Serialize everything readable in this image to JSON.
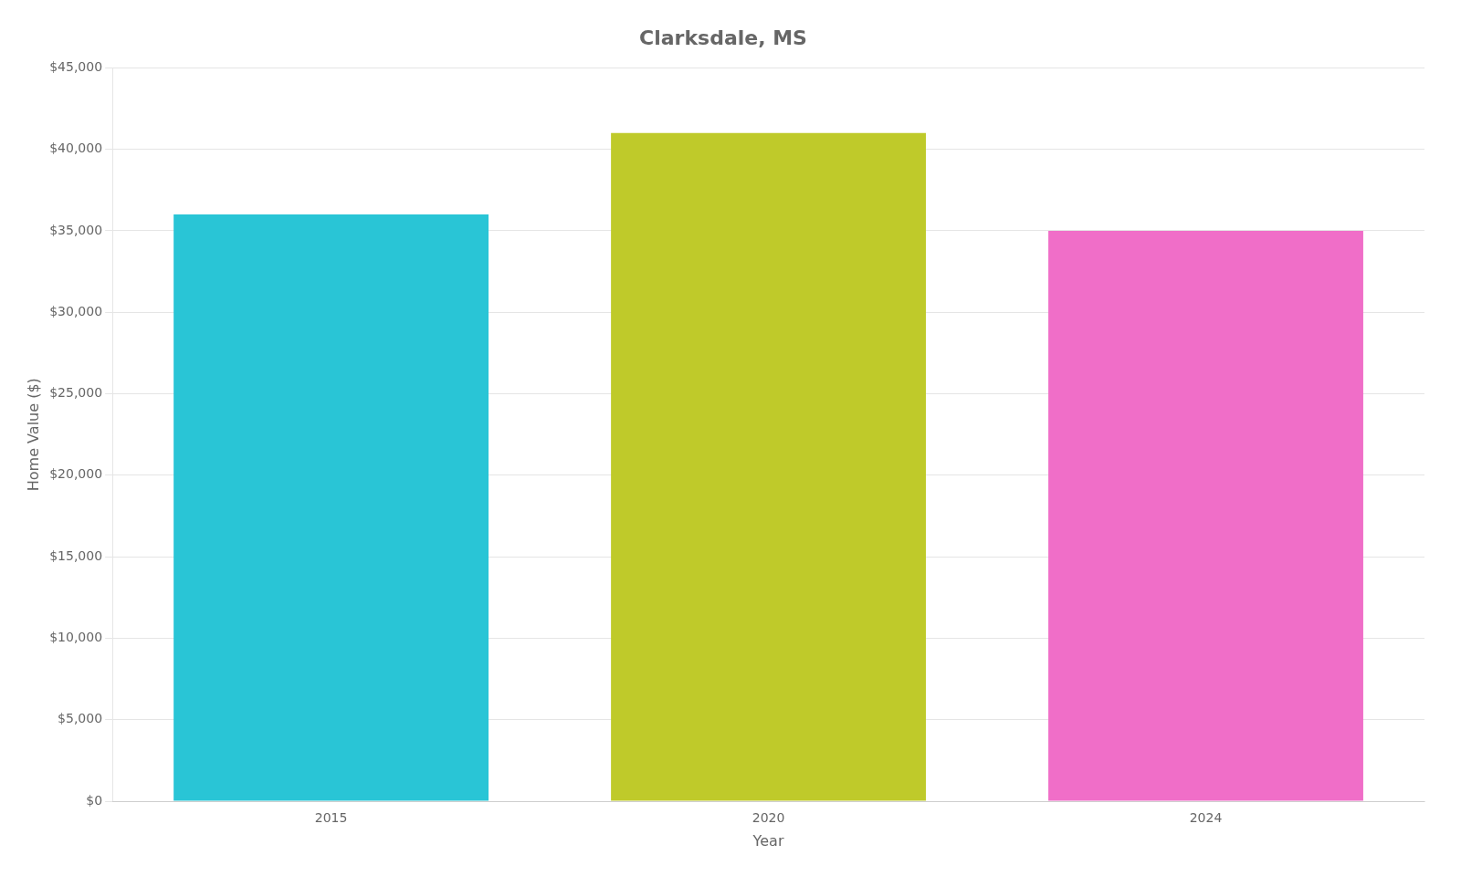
{
  "chart_data": {
    "type": "bar",
    "title": "Clarksdale, MS",
    "xlabel": "Year",
    "ylabel": "Home Value ($)",
    "categories": [
      "2015",
      "2020",
      "2024"
    ],
    "values": [
      36000,
      41000,
      35000
    ],
    "colors": [
      "#29C5D6",
      "#BFCA2A",
      "#F06EC8"
    ],
    "ylim": [
      0,
      45000
    ],
    "yticks": [
      {
        "value": 0,
        "label": "$0"
      },
      {
        "value": 5000,
        "label": "$5,000"
      },
      {
        "value": 10000,
        "label": "$10,000"
      },
      {
        "value": 15000,
        "label": "$15,000"
      },
      {
        "value": 20000,
        "label": "$20,000"
      },
      {
        "value": 25000,
        "label": "$25,000"
      },
      {
        "value": 30000,
        "label": "$30,000"
      },
      {
        "value": 35000,
        "label": "$35,000"
      },
      {
        "value": 40000,
        "label": "$40,000"
      },
      {
        "value": 45000,
        "label": "$45,000"
      }
    ],
    "grid": true
  }
}
